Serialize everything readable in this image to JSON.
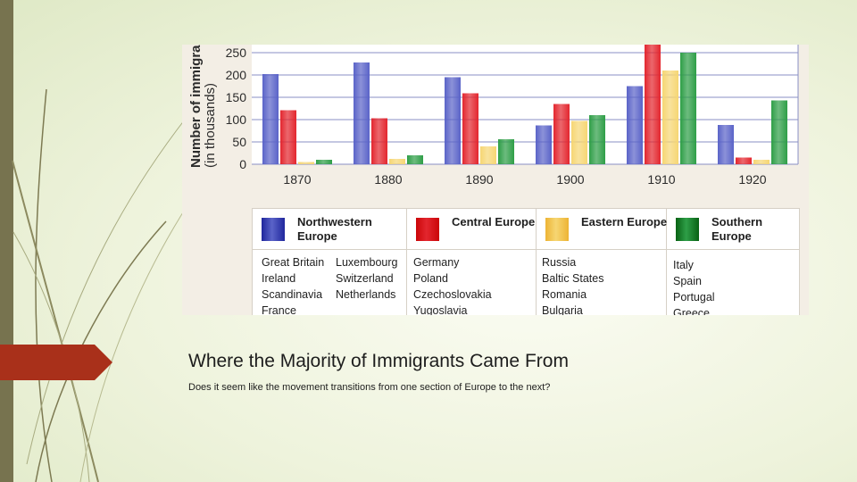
{
  "slide": {
    "title": "Where the Majority of Immigrants Came From",
    "subtitle": "Does it seem like the movement transitions from one section of Europe to the next?"
  },
  "chart_data": {
    "type": "bar",
    "title": "",
    "xlabel": "",
    "ylabel": "Number of immigrants",
    "ylabel_sub": "(in thousands)",
    "categories": [
      "1870",
      "1880",
      "1890",
      "1900",
      "1910",
      "1920"
    ],
    "yticks": [
      0,
      50,
      100,
      150,
      200,
      250
    ],
    "ylim": [
      0,
      260
    ],
    "grid": true,
    "series": [
      {
        "name": "Northwestern Europe",
        "color": "#5a63c8",
        "values": [
          202,
          228,
          195,
          87,
          175,
          88
        ]
      },
      {
        "name": "Central Europe",
        "color": "#e3262e",
        "values": [
          121,
          103,
          159,
          135,
          270,
          15
        ]
      },
      {
        "name": "Eastern Europe",
        "color": "#f6d673",
        "values": [
          5,
          12,
          40,
          97,
          210,
          10
        ]
      },
      {
        "name": "Southern Europe",
        "color": "#2e9e47",
        "values": [
          10,
          20,
          56,
          110,
          250,
          143
        ]
      }
    ]
  },
  "legend": {
    "groups": [
      {
        "name": "Northwestern Europe",
        "color": "#5a63c8",
        "countries": [
          "Great Britain",
          "Luxembourg",
          "Ireland",
          "Switzerland",
          "Scandinavia",
          "Netherlands",
          "France"
        ]
      },
      {
        "name": "Central Europe",
        "color": "#e3262e",
        "countries": [
          "Germany",
          "Poland",
          "Czechoslovakia",
          "Yugoslavia"
        ]
      },
      {
        "name": "Eastern Europe",
        "color": "#f6d673",
        "countries": [
          "Russia",
          "Baltic States",
          "Romania",
          "Bulgaria"
        ]
      },
      {
        "name": "Southern Europe",
        "color": "#2e9e47",
        "countries": [
          "Italy",
          "Spain",
          "Portugal",
          "Greece"
        ]
      }
    ]
  },
  "theme": {
    "left_bar": "#77734f",
    "red_tab": "#a9301a"
  }
}
